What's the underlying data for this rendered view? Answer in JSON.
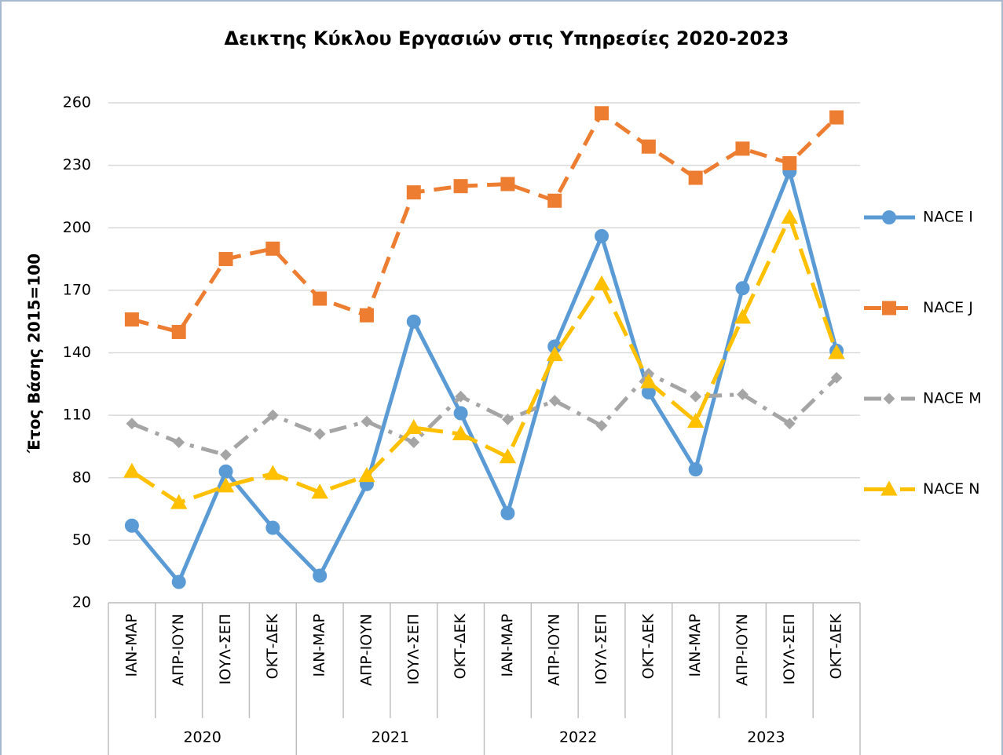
{
  "chart_data": {
    "type": "line",
    "title": "Δεικτης Κύκλου Εργασιών στις Υπηρεσίες 2020-2023",
    "y_label": "Έτος Βάσης 2015=100",
    "categories": [
      "ΙΑΝ-ΜΑΡ",
      "ΑΠΡ-ΙΟΥΝ",
      "ΙΟΥΛ-ΣΕΠ",
      "ΟΚΤ-ΔΕΚ",
      "ΙΑΝ-ΜΑΡ",
      "ΑΠΡ-ΙΟΥΝ",
      "ΙΟΥΛ-ΣΕΠ",
      "ΟΚΤ-ΔΕΚ",
      "ΙΑΝ-ΜΑΡ",
      "ΑΠΡ-ΙΟΥΝ",
      "ΙΟΥΛ-ΣΕΠ",
      "ΟΚΤ-ΔΕΚ",
      "ΙΑΝ-ΜΑΡ",
      "ΑΠΡ-ΙΟΥΝ",
      "ΙΟΥΛ-ΣΕΠ",
      "ΟΚΤ-ΔΕΚ"
    ],
    "years": [
      "2020",
      "2021",
      "2022",
      "2023"
    ],
    "series": [
      {
        "name": "NACE I",
        "color": "#5b9bd5",
        "dash": "solid",
        "marker": "circle",
        "values": [
          57,
          30,
          83,
          56,
          33,
          77,
          155,
          111,
          63,
          143,
          196,
          121,
          84,
          171,
          227,
          141
        ]
      },
      {
        "name": "NACE J",
        "color": "#ed7d31",
        "dash": "dashed",
        "marker": "square",
        "values": [
          156,
          150,
          185,
          190,
          166,
          158,
          217,
          220,
          221,
          213,
          255,
          239,
          224,
          238,
          231,
          253
        ]
      },
      {
        "name": "NACE M",
        "color": "#a5a5a5",
        "dash": "dashdot",
        "marker": "diamond",
        "values": [
          106,
          97,
          91,
          110,
          101,
          107,
          97,
          119,
          108,
          117,
          105,
          130,
          119,
          120,
          106,
          128
        ]
      },
      {
        "name": "NACE N",
        "color": "#ffc000",
        "dash": "longdash",
        "marker": "triangle",
        "values": [
          83,
          68,
          76,
          82,
          73,
          81,
          104,
          101,
          90,
          139,
          173,
          126,
          107,
          157,
          205,
          140
        ]
      }
    ],
    "ylim": [
      20,
      260
    ],
    "yticks": [
      20,
      50,
      80,
      110,
      140,
      170,
      200,
      230,
      260
    ],
    "grid": true,
    "legend": "right"
  }
}
